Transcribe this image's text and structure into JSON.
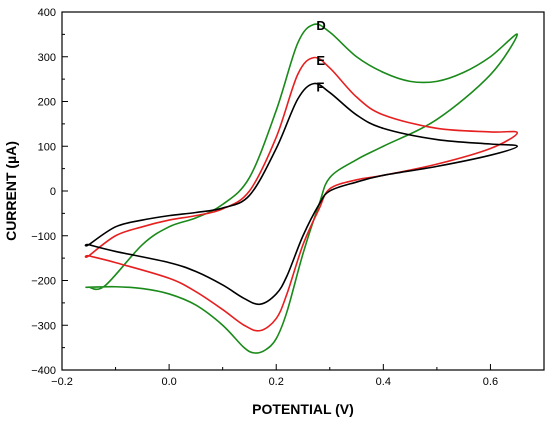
{
  "chart_data": {
    "type": "line",
    "xlabel": "POTENTIAL (V)",
    "ylabel": "CURRENT (µA)",
    "xlim": [
      -0.2,
      0.7
    ],
    "ylim": [
      -400,
      400
    ],
    "xticks": [
      -0.2,
      0.0,
      0.2,
      0.4,
      0.6
    ],
    "xtick_labels": [
      "−0.2",
      "0.0",
      "0.2",
      "0.4",
      "0.6"
    ],
    "yticks": [
      -400,
      -300,
      -200,
      -100,
      0,
      100,
      200,
      300,
      400
    ],
    "ytick_labels": [
      "−400",
      "−300",
      "−200",
      "−100",
      "0",
      "100",
      "200",
      "300",
      "400"
    ],
    "grid": false,
    "series": [
      {
        "name": "D",
        "color": "#1a8a1a",
        "x": [
          -0.15,
          -0.12,
          -0.05,
          0.0,
          0.05,
          0.1,
          0.15,
          0.2,
          0.24,
          0.27,
          0.3,
          0.35,
          0.4,
          0.45,
          0.5,
          0.55,
          0.6,
          0.65,
          0.6,
          0.5,
          0.4,
          0.35,
          0.3,
          0.28,
          0.25,
          0.22,
          0.2,
          0.18,
          0.16,
          0.14,
          0.1,
          0.05,
          0.0,
          -0.05,
          -0.1,
          -0.15
        ],
        "y": [
          -215,
          -212,
          -120,
          -80,
          -60,
          -30,
          30,
          180,
          330,
          372,
          355,
          300,
          265,
          245,
          245,
          265,
          300,
          350,
          260,
          160,
          100,
          70,
          30,
          -30,
          -140,
          -270,
          -330,
          -355,
          -362,
          -350,
          -300,
          -255,
          -230,
          -218,
          -214,
          -215
        ]
      },
      {
        "name": "E",
        "color": "#e62020",
        "x": [
          -0.15,
          -0.1,
          -0.05,
          0.0,
          0.05,
          0.1,
          0.15,
          0.2,
          0.24,
          0.27,
          0.3,
          0.35,
          0.4,
          0.5,
          0.6,
          0.65,
          0.6,
          0.5,
          0.4,
          0.35,
          0.3,
          0.28,
          0.25,
          0.22,
          0.2,
          0.17,
          0.14,
          0.1,
          0.05,
          0.0,
          -0.1,
          -0.15
        ],
        "y": [
          -145,
          -100,
          -80,
          -65,
          -55,
          -40,
          0,
          120,
          260,
          298,
          275,
          210,
          170,
          140,
          132,
          130,
          95,
          60,
          35,
          25,
          5,
          -40,
          -120,
          -230,
          -285,
          -312,
          -300,
          -265,
          -225,
          -195,
          -160,
          -145
        ]
      },
      {
        "name": "F",
        "color": "#000000",
        "x": [
          -0.15,
          -0.1,
          -0.05,
          0.0,
          0.05,
          0.1,
          0.15,
          0.2,
          0.24,
          0.27,
          0.3,
          0.35,
          0.4,
          0.5,
          0.6,
          0.65,
          0.6,
          0.5,
          0.4,
          0.35,
          0.3,
          0.28,
          0.25,
          0.22,
          0.2,
          0.17,
          0.14,
          0.1,
          0.05,
          0.0,
          -0.1,
          -0.15
        ],
        "y": [
          -120,
          -80,
          -65,
          -55,
          -48,
          -38,
          -10,
          95,
          205,
          240,
          220,
          170,
          140,
          115,
          105,
          100,
          80,
          55,
          35,
          20,
          0,
          -30,
          -100,
          -190,
          -230,
          -253,
          -240,
          -210,
          -180,
          -160,
          -135,
          -120
        ]
      }
    ],
    "annotations": [
      {
        "text": "D",
        "x": 0.275,
        "y": 360
      },
      {
        "text": "E",
        "x": 0.275,
        "y": 282
      },
      {
        "text": "F",
        "x": 0.275,
        "y": 222
      }
    ]
  }
}
